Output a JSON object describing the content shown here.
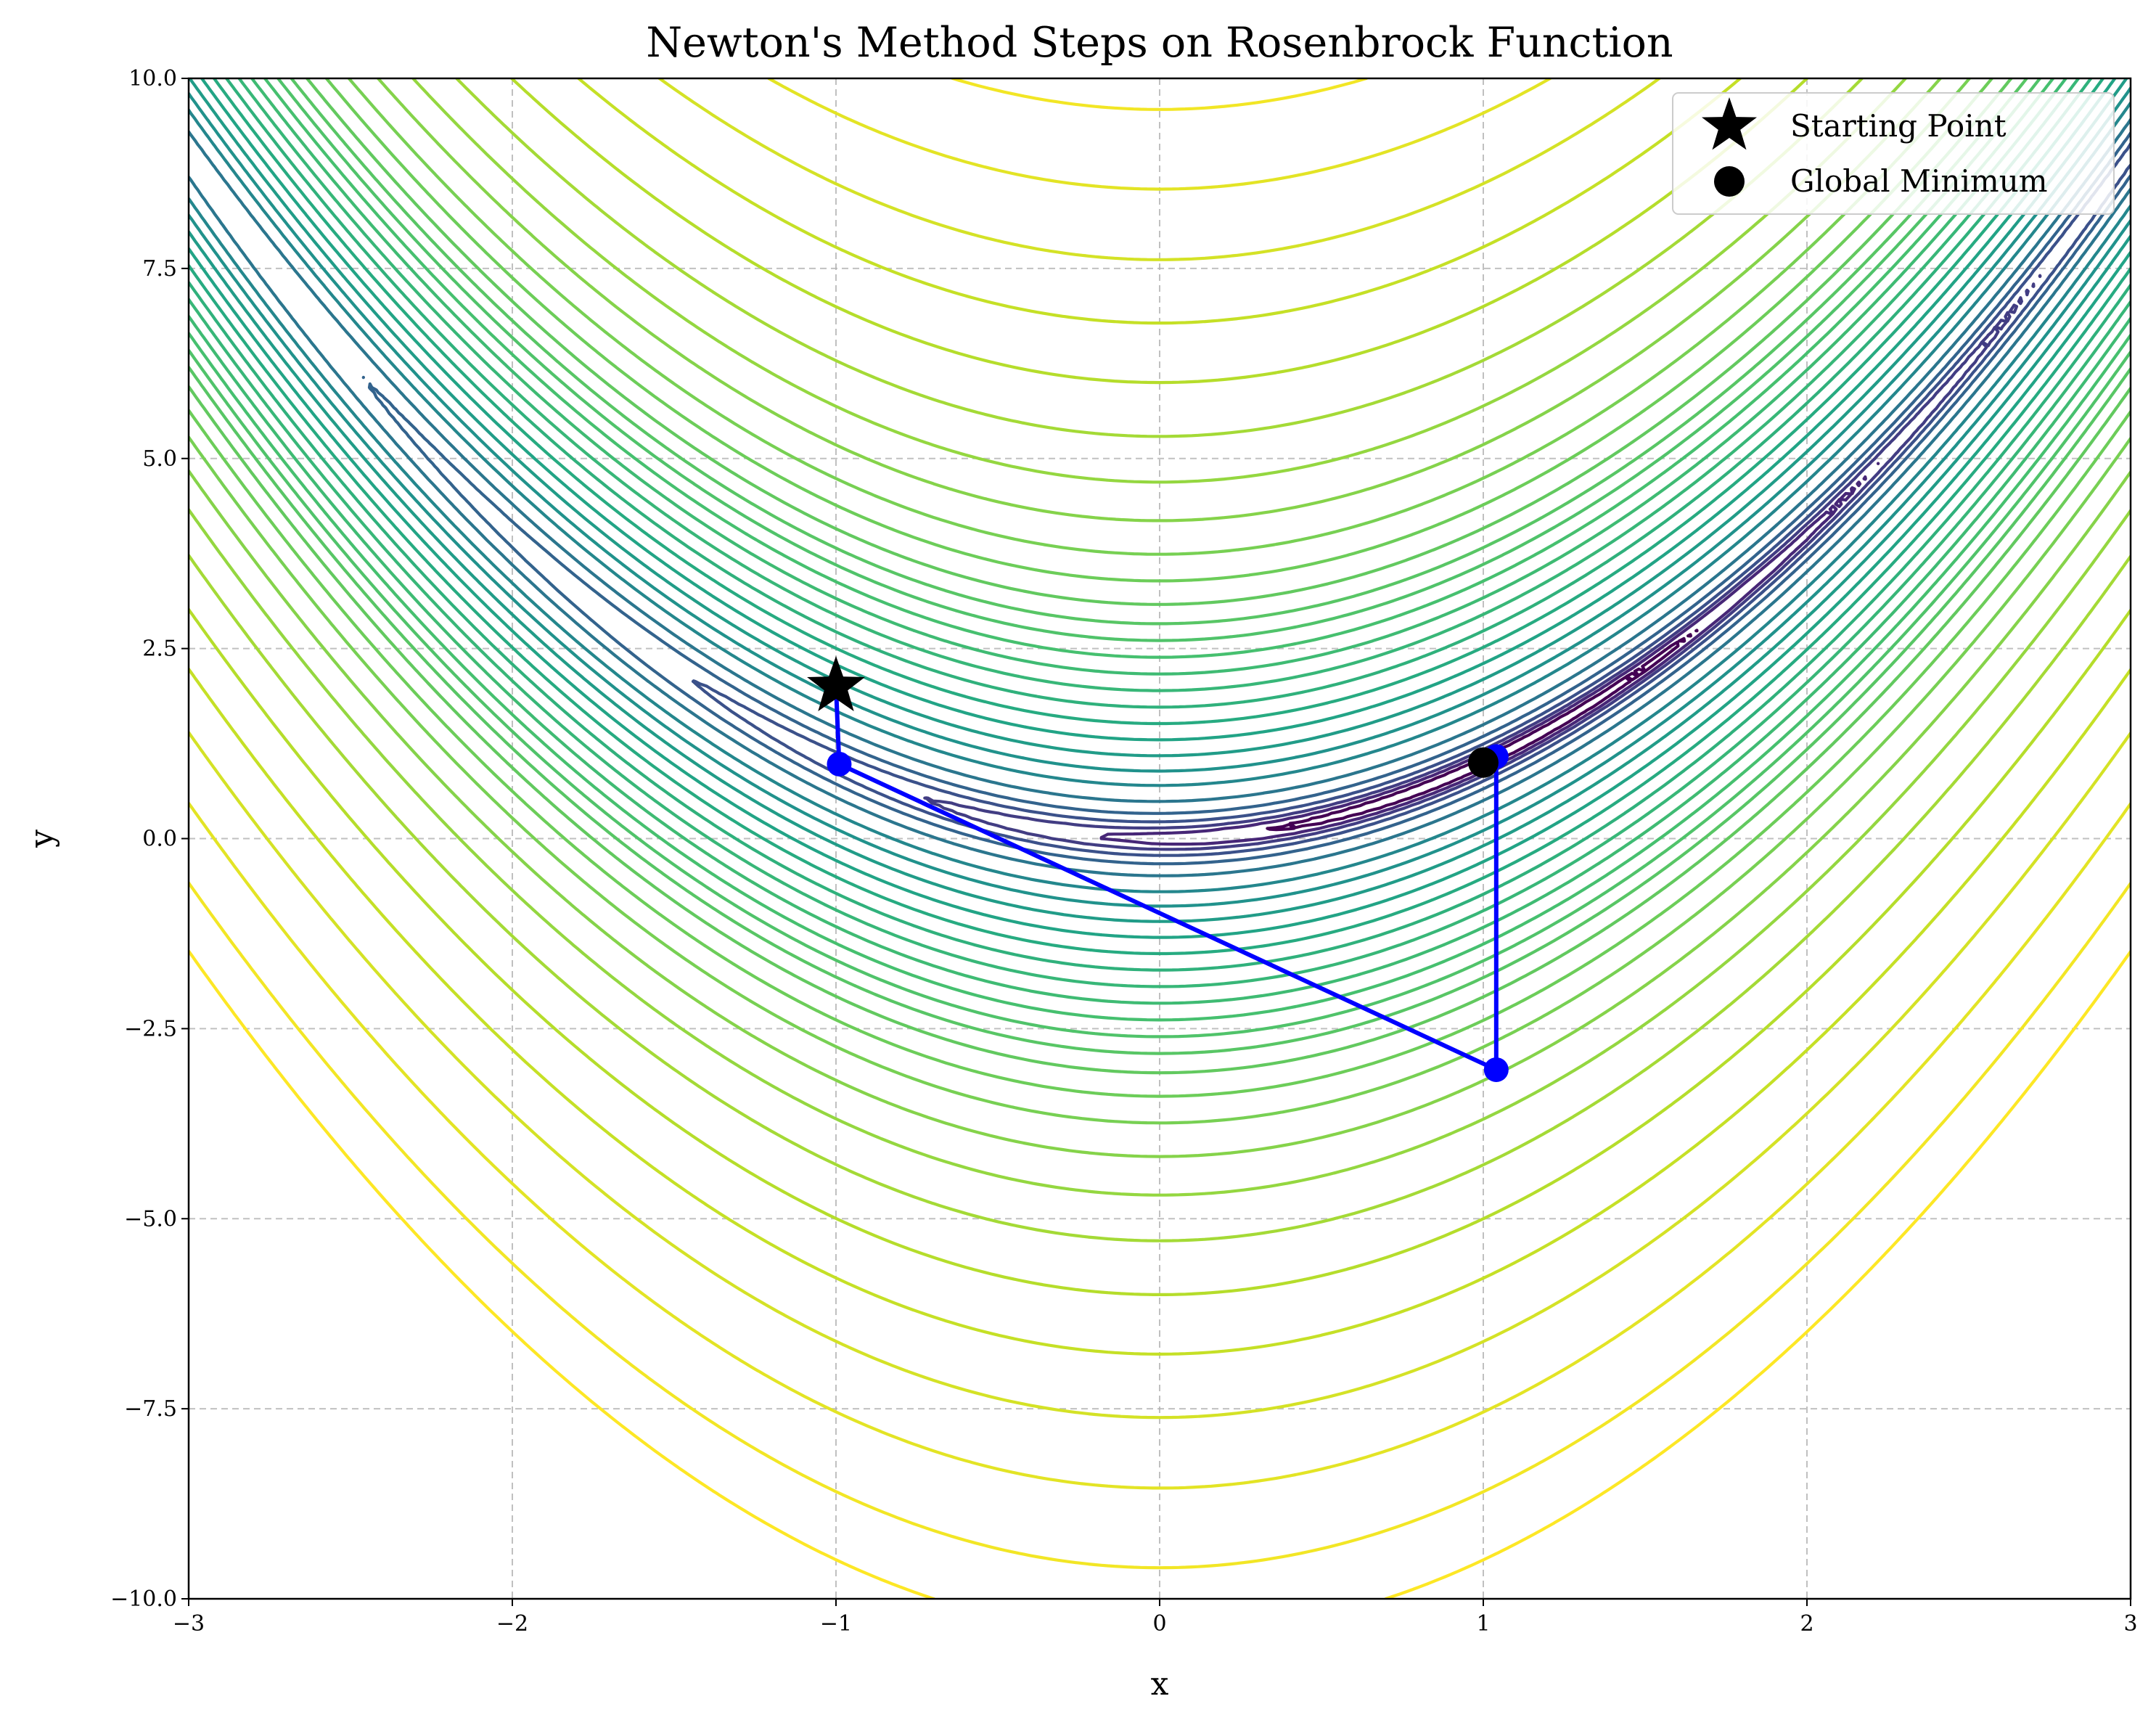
{
  "chart_data": {
    "type": "contour",
    "title": "Newton's Method Steps on Rosenbrock Function",
    "xlabel": "x",
    "ylabel": "y",
    "xlim": [
      -3,
      3
    ],
    "ylim": [
      -10,
      10
    ],
    "x_ticks": [
      -3,
      -2,
      -1,
      0,
      1,
      2,
      3
    ],
    "x_tick_labels": [
      "−3",
      "−2",
      "−1",
      "0",
      "1",
      "2",
      "3"
    ],
    "y_ticks": [
      -10,
      -7.5,
      -5,
      -2.5,
      0,
      2.5,
      5,
      7.5,
      10
    ],
    "y_tick_labels": [
      "−10.0",
      "−7.5",
      "−5.0",
      "−2.5",
      "0.0",
      "2.5",
      "5.0",
      "7.5",
      "10.0"
    ],
    "grid": true,
    "legend_position": "top-right",
    "colormap": "viridis",
    "function": "Rosenbrock",
    "legend": [
      {
        "label": "Starting Point",
        "marker": "star",
        "color": "#000000"
      },
      {
        "label": "Global Minimum",
        "marker": "circle",
        "color": "#000000"
      }
    ],
    "starting_point": {
      "x": -1,
      "y": 2
    },
    "global_minimum": {
      "x": 1,
      "y": 1
    },
    "newton_path": {
      "color": "#0000ff",
      "points": [
        {
          "x": -1,
          "y": 2
        },
        {
          "x": -0.99,
          "y": 0.98
        },
        {
          "x": 1.04,
          "y": -3.04
        },
        {
          "x": 1.04,
          "y": 1.08
        }
      ]
    },
    "contour_levels": [
      0.5,
      1.5,
      3,
      6,
      12,
      25,
      50,
      80,
      120,
      170,
      230,
      300,
      380,
      470,
      570,
      680,
      800,
      950,
      1150,
      1400,
      1750,
      2200,
      2800,
      3600,
      4600,
      5800,
      7300,
      9200,
      11000
    ]
  }
}
